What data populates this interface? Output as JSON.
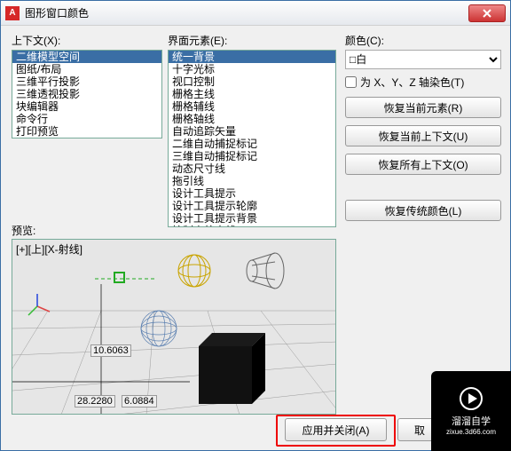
{
  "titlebar": {
    "icon_letter": "A",
    "title": "图形窗口颜色"
  },
  "col1": {
    "label": "上下文(X):",
    "items": [
      "二维模型空间",
      "图纸/布局",
      "三维平行投影",
      "三维透视投影",
      "块编辑器",
      "命令行",
      "打印预览"
    ],
    "selected_index": 0
  },
  "col2": {
    "label": "界面元素(E):",
    "items": [
      "统一背景",
      "十字光标",
      "视口控制",
      "栅格主线",
      "栅格辅线",
      "栅格轴线",
      "自动追踪矢量",
      "二维自动捕捉标记",
      "三维自动捕捉标记",
      "动态尺寸线",
      "拖引线",
      "设计工具提示",
      "设计工具提示轮廓",
      "设计工具提示背景",
      "控制点外壳线"
    ],
    "selected_index": 0
  },
  "col3": {
    "color_label": "颜色(C):",
    "color_value": "□白",
    "tint_label": "为 X、Y、Z 轴染色(T)",
    "buttons": {
      "restore_element": "恢复当前元素(R)",
      "restore_context": "恢复当前上下文(U)",
      "restore_all_contexts": "恢复所有上下文(O)",
      "restore_classic": "恢复传统颜色(L)"
    }
  },
  "preview": {
    "label": "预览:",
    "topleft": "[+][上][X-射线]",
    "coord1": "10.6063",
    "coord2": "28.2280",
    "coord3": "6.0884",
    "bg": "#e6e6e6",
    "gridline_color": "#9a9a9a",
    "axis_colors": {
      "x": "#d44",
      "y": "#3b3",
      "z": "#24d"
    },
    "marker_color": "#2a2",
    "wire_sphere": "#c9a400",
    "wire_cone": "#666",
    "wire_sphere2": "#5a7fb0",
    "cube_colors": {
      "front": "#111",
      "side": "#000",
      "top": "#1a1a1a"
    }
  },
  "bottom": {
    "apply_close": "应用并关闭(A)",
    "cancel": "取"
  },
  "watermark": {
    "line1": "溜溜自学",
    "line2": "zixue.3d66.com"
  }
}
